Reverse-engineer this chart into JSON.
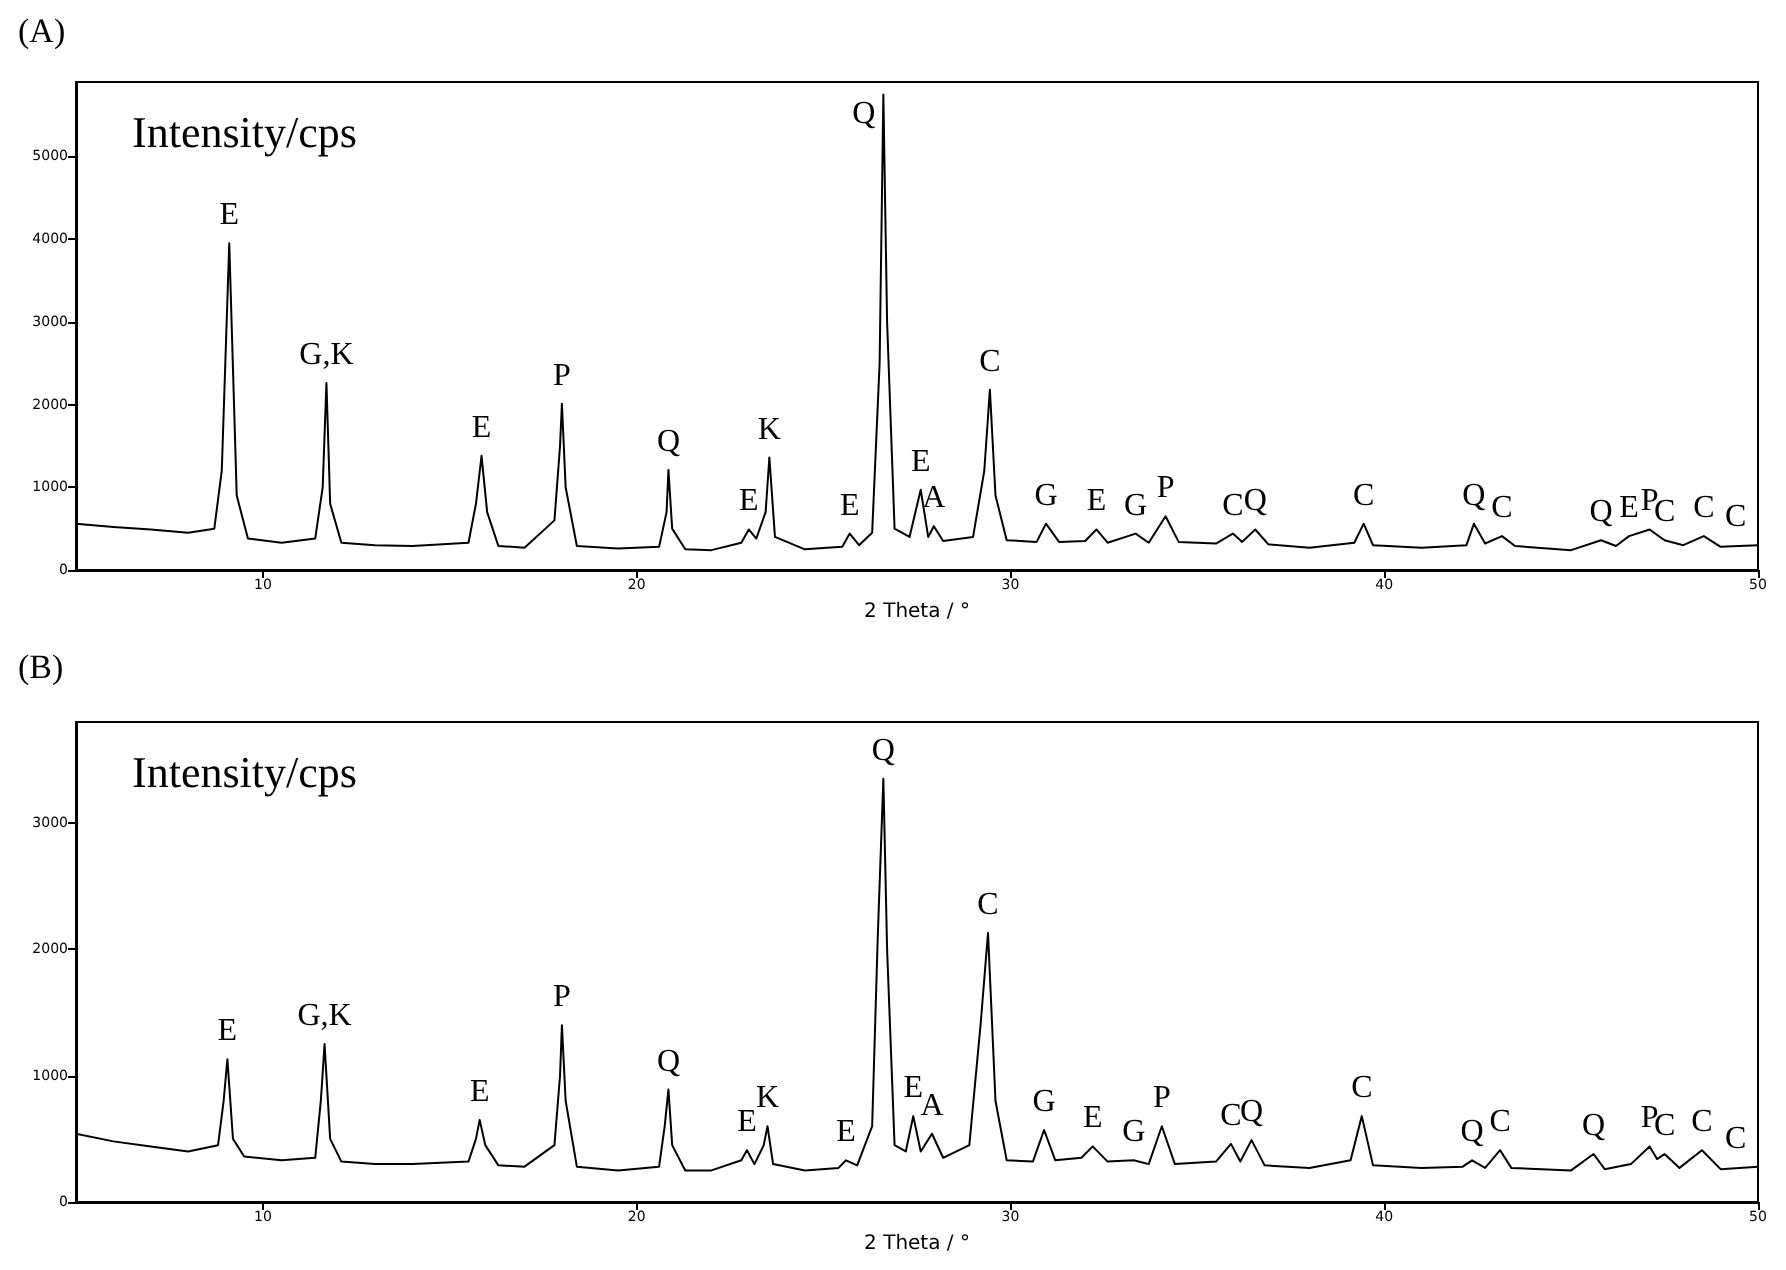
{
  "chart_data": [
    {
      "type": "line",
      "title": "(A)",
      "xlabel": "2 Theta / °",
      "ylabel": "Intensity/cps",
      "xlim": [
        5,
        50
      ],
      "xticks": [
        10,
        20,
        30,
        40,
        50
      ],
      "ylim": [
        0,
        5900
      ],
      "yticks": [
        0,
        1000,
        2000,
        3000,
        4000,
        5000
      ],
      "marker": "none",
      "series": [
        {
          "color": "#000000",
          "x": [
            5,
            6,
            7,
            8,
            8.7,
            8.9,
            9.1,
            9.3,
            9.6,
            10.5,
            11.4,
            11.6,
            11.7,
            11.8,
            12.1,
            13,
            14,
            15.5,
            15.7,
            15.85,
            16.0,
            16.3,
            17,
            17.8,
            17.95,
            18.0,
            18.1,
            18.4,
            19.5,
            20.6,
            20.8,
            20.85,
            20.95,
            21.3,
            22,
            22.8,
            23.0,
            23.2,
            23.45,
            23.55,
            23.7,
            24.5,
            25.5,
            25.7,
            25.95,
            26.3,
            26.5,
            26.6,
            26.7,
            26.9,
            27.3,
            27.6,
            27.8,
            27.95,
            28.2,
            29.0,
            29.3,
            29.45,
            29.6,
            29.9,
            30.7,
            30.95,
            31.3,
            32.0,
            32.3,
            32.6,
            33.35,
            33.7,
            34.15,
            34.5,
            35.5,
            35.95,
            36.2,
            36.55,
            36.9,
            38,
            39.2,
            39.45,
            39.7,
            41,
            42.2,
            42.4,
            42.7,
            43.15,
            43.5,
            45,
            45.8,
            46.2,
            46.55,
            47.1,
            47.5,
            48,
            48.55,
            49,
            50
          ],
          "values": [
            560,
            520,
            490,
            450,
            500,
            1200,
            3950,
            900,
            380,
            330,
            380,
            1000,
            2260,
            800,
            330,
            300,
            290,
            330,
            800,
            1380,
            700,
            290,
            270,
            600,
            1500,
            2010,
            1000,
            290,
            260,
            280,
            700,
            1210,
            500,
            250,
            240,
            330,
            490,
            380,
            700,
            1360,
            400,
            250,
            280,
            440,
            300,
            450,
            2500,
            5750,
            3000,
            500,
            400,
            970,
            400,
            530,
            350,
            400,
            1200,
            2180,
            900,
            360,
            340,
            560,
            340,
            350,
            490,
            330,
            440,
            330,
            650,
            340,
            320,
            440,
            340,
            490,
            310,
            270,
            330,
            560,
            300,
            270,
            300,
            560,
            320,
            410,
            290,
            240,
            360,
            290,
            410,
            490,
            360,
            300,
            410,
            280,
            300
          ]
        }
      ],
      "annotations": [
        {
          "text": "E",
          "x": 9.1,
          "y": 3950
        },
        {
          "text": "G,K",
          "x": 11.7,
          "y": 2260
        },
        {
          "text": "E",
          "x": 15.85,
          "y": 1380
        },
        {
          "text": "P",
          "x": 18.0,
          "y": 2010
        },
        {
          "text": "Q",
          "x": 20.85,
          "y": 1210
        },
        {
          "text": "E",
          "x": 23.0,
          "y": 490
        },
        {
          "text": "K",
          "x": 23.55,
          "y": 1360
        },
        {
          "text": "E",
          "x": 25.7,
          "y": 440
        },
        {
          "text": "Q",
          "x": 26.6,
          "y": 5750
        },
        {
          "text": "E",
          "x": 27.6,
          "y": 970
        },
        {
          "text": "A",
          "x": 27.95,
          "y": 530
        },
        {
          "text": "C",
          "x": 29.45,
          "y": 2180
        },
        {
          "text": "G",
          "x": 30.95,
          "y": 560
        },
        {
          "text": "E",
          "x": 32.3,
          "y": 490
        },
        {
          "text": "G",
          "x": 33.35,
          "y": 440
        },
        {
          "text": "P",
          "x": 34.15,
          "y": 650
        },
        {
          "text": "C",
          "x": 35.95,
          "y": 440
        },
        {
          "text": "Q",
          "x": 36.55,
          "y": 490
        },
        {
          "text": "C",
          "x": 39.45,
          "y": 560
        },
        {
          "text": "Q",
          "x": 42.4,
          "y": 560
        },
        {
          "text": "C",
          "x": 43.15,
          "y": 410
        },
        {
          "text": "Q",
          "x": 45.8,
          "y": 360
        },
        {
          "text": "E",
          "x": 46.55,
          "y": 410
        },
        {
          "text": "P",
          "x": 47.1,
          "y": 490
        },
        {
          "text": "C",
          "x": 47.5,
          "y": 360
        },
        {
          "text": "C",
          "x": 48.55,
          "y": 410
        },
        {
          "text": "C",
          "x": 49.9,
          "y": 300
        }
      ]
    },
    {
      "type": "line",
      "title": "(B)",
      "xlabel": "2 Theta / °",
      "ylabel": "Intensity/cps",
      "xlim": [
        5,
        50
      ],
      "xticks": [
        10,
        20,
        30,
        40,
        50
      ],
      "ylim": [
        0,
        3800
      ],
      "yticks": [
        0,
        1000,
        2000,
        3000
      ],
      "marker": "none",
      "series": [
        {
          "color": "#000000",
          "x": [
            5,
            6,
            7,
            8,
            8.8,
            8.95,
            9.05,
            9.2,
            9.5,
            10.5,
            11.4,
            11.55,
            11.65,
            11.8,
            12.1,
            13,
            14,
            15.5,
            15.7,
            15.8,
            15.95,
            16.3,
            17,
            17.8,
            17.95,
            18.0,
            18.1,
            18.4,
            19.5,
            20.6,
            20.75,
            20.85,
            20.95,
            21.3,
            22,
            22.8,
            22.95,
            23.15,
            23.4,
            23.5,
            23.65,
            24.5,
            25.4,
            25.6,
            25.9,
            26.3,
            26.45,
            26.6,
            26.7,
            26.9,
            27.2,
            27.4,
            27.6,
            27.9,
            28.2,
            28.9,
            29.2,
            29.4,
            29.6,
            29.9,
            30.6,
            30.9,
            31.2,
            31.9,
            32.2,
            32.6,
            33.3,
            33.7,
            34.05,
            34.4,
            35.5,
            35.9,
            36.15,
            36.45,
            36.8,
            38,
            39.1,
            39.4,
            39.7,
            41,
            42.1,
            42.35,
            42.7,
            43.1,
            43.4,
            45,
            45.6,
            45.9,
            46.6,
            47.1,
            47.3,
            47.5,
            47.9,
            48.5,
            49,
            50
          ],
          "values": [
            540,
            480,
            440,
            400,
            450,
            800,
            1130,
            500,
            360,
            330,
            350,
            800,
            1250,
            500,
            320,
            300,
            300,
            320,
            500,
            650,
            450,
            290,
            280,
            450,
            1000,
            1400,
            800,
            280,
            250,
            280,
            600,
            890,
            450,
            250,
            250,
            330,
            410,
            300,
            450,
            600,
            300,
            250,
            270,
            330,
            290,
            600,
            2100,
            3350,
            2000,
            450,
            400,
            680,
            400,
            540,
            350,
            450,
            1400,
            2130,
            800,
            330,
            320,
            570,
            330,
            350,
            440,
            320,
            330,
            300,
            600,
            300,
            320,
            460,
            320,
            490,
            290,
            270,
            330,
            680,
            290,
            270,
            280,
            330,
            270,
            410,
            270,
            250,
            380,
            260,
            300,
            440,
            340,
            380,
            270,
            410,
            260,
            280
          ]
        }
      ],
      "annotations": [
        {
          "text": "E",
          "x": 9.05,
          "y": 1130
        },
        {
          "text": "G,K",
          "x": 11.65,
          "y": 1250
        },
        {
          "text": "E",
          "x": 15.8,
          "y": 650
        },
        {
          "text": "P",
          "x": 18.0,
          "y": 1400
        },
        {
          "text": "Q",
          "x": 20.85,
          "y": 890
        },
        {
          "text": "E",
          "x": 22.95,
          "y": 410
        },
        {
          "text": "K",
          "x": 23.5,
          "y": 600
        },
        {
          "text": "E",
          "x": 25.6,
          "y": 330
        },
        {
          "text": "Q",
          "x": 26.6,
          "y": 3350
        },
        {
          "text": "E",
          "x": 27.4,
          "y": 680
        },
        {
          "text": "A",
          "x": 27.9,
          "y": 540
        },
        {
          "text": "C",
          "x": 29.4,
          "y": 2130
        },
        {
          "text": "G",
          "x": 30.9,
          "y": 570
        },
        {
          "text": "E",
          "x": 32.2,
          "y": 440
        },
        {
          "text": "G",
          "x": 33.3,
          "y": 330
        },
        {
          "text": "P",
          "x": 34.05,
          "y": 600
        },
        {
          "text": "C",
          "x": 35.9,
          "y": 460
        },
        {
          "text": "Q",
          "x": 36.45,
          "y": 490
        },
        {
          "text": "C",
          "x": 39.4,
          "y": 680
        },
        {
          "text": "Q",
          "x": 42.35,
          "y": 330
        },
        {
          "text": "C",
          "x": 43.1,
          "y": 410
        },
        {
          "text": "Q",
          "x": 45.6,
          "y": 380
        },
        {
          "text": "P",
          "x": 47.1,
          "y": 440
        },
        {
          "text": "C",
          "x": 47.5,
          "y": 380
        },
        {
          "text": "C",
          "x": 48.5,
          "y": 410
        },
        {
          "text": "C",
          "x": 49.9,
          "y": 280
        }
      ]
    }
  ]
}
